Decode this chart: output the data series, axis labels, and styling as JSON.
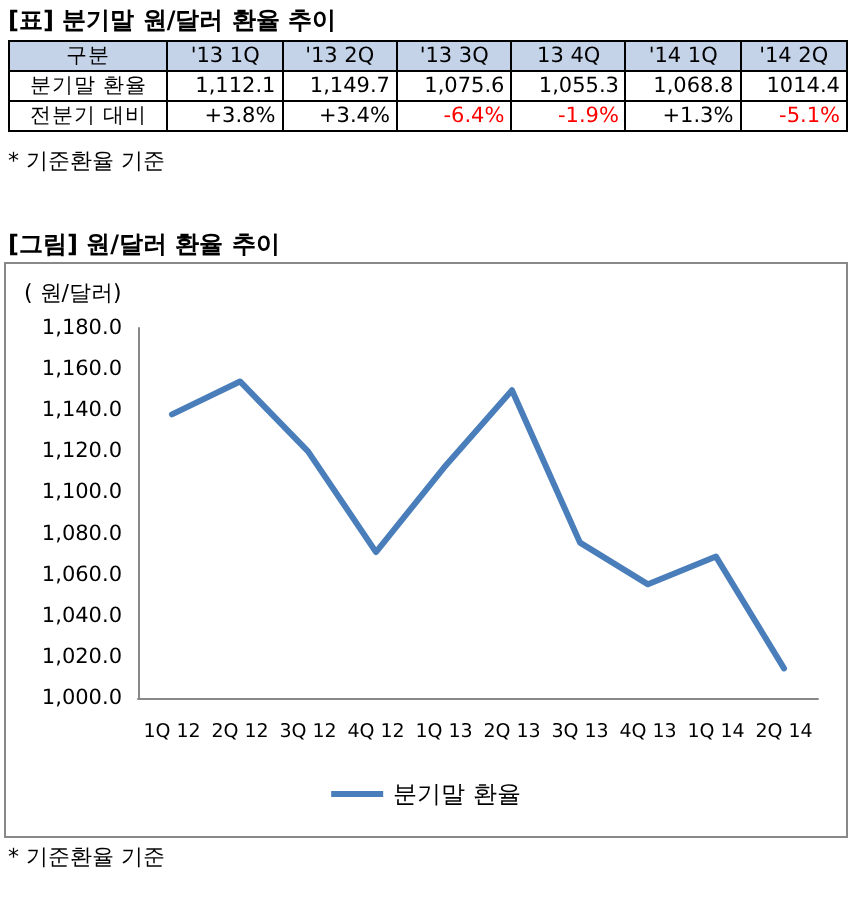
{
  "chart_data": {
    "type": "line",
    "title": "[그림] 원/달러 환율 추이",
    "ylabel": "( 원/달러)",
    "categories": [
      "1Q 12",
      "2Q 12",
      "3Q 12",
      "4Q 12",
      "1Q 13",
      "2Q 13",
      "3Q 13",
      "4Q 13",
      "1Q 14",
      "2Q 14"
    ],
    "series": [
      {
        "name": "분기말 환율",
        "color": "#4a7ebb",
        "values": [
          1138,
          1154,
          1120,
          1071,
          1112.1,
          1149.7,
          1075.6,
          1055.3,
          1068.8,
          1014.4
        ]
      }
    ],
    "ylim": [
      1000,
      1180
    ],
    "yticks": [
      {
        "value": 1000,
        "label": "1,000.0"
      },
      {
        "value": 1020,
        "label": "1,020.0"
      },
      {
        "value": 1040,
        "label": "1,040.0"
      },
      {
        "value": 1060,
        "label": "1,060.0"
      },
      {
        "value": 1080,
        "label": "1,080.0"
      },
      {
        "value": 1100,
        "label": "1,100.0"
      },
      {
        "value": 1120,
        "label": "1,120.0"
      },
      {
        "value": 1140,
        "label": "1,140.0"
      },
      {
        "value": 1160,
        "label": "1,160.0"
      },
      {
        "value": 1180,
        "label": "1,180.0"
      }
    ],
    "grid": false,
    "legend": "bottom",
    "marker": "none",
    "line_style": "solid",
    "annotations": [
      "[표] 분기말 원/달러 환율 추이",
      "구분",
      "'13 1Q",
      "'13 2Q",
      "'13 3Q",
      "13 4Q",
      "'14 1Q",
      "'14 2Q",
      "분기말 환율",
      "1,112.1",
      "1,149.7",
      "1,075.6",
      "1,055.3",
      "1,068.8",
      "1014.4",
      "전분기 대비",
      "+3.8%",
      "+3.4%",
      "-6.4%",
      "-1.9%",
      "+1.3%",
      "-5.1%",
      "* 기준환율 기준",
      "* 기준환율 기준"
    ]
  }
}
